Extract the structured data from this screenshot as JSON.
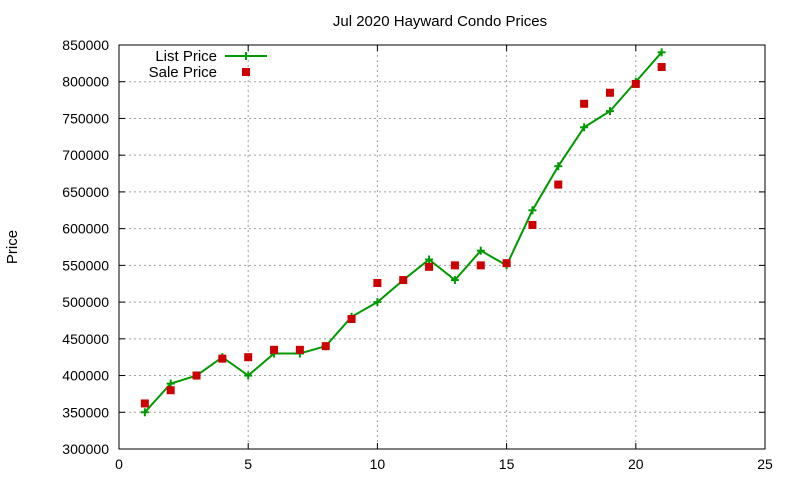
{
  "chart_data": {
    "type": "line",
    "title": "Jul 2020 Hayward Condo Prices",
    "xlabel": "",
    "ylabel": "Price",
    "xlim": [
      0,
      25
    ],
    "ylim": [
      300000,
      850000
    ],
    "xticks": [
      0,
      5,
      10,
      15,
      20,
      25
    ],
    "yticks": [
      300000,
      350000,
      400000,
      450000,
      500000,
      550000,
      600000,
      650000,
      700000,
      750000,
      800000,
      850000
    ],
    "grid": true,
    "legend_position": "top-left",
    "x": [
      1,
      2,
      3,
      4,
      5,
      6,
      7,
      8,
      9,
      10,
      11,
      12,
      13,
      14,
      15,
      16,
      17,
      18,
      19,
      20,
      21
    ],
    "series": [
      {
        "name": "List Price",
        "style": "line+cross",
        "color": "#009900",
        "values": [
          350000,
          389000,
          400000,
          425000,
          400000,
          430000,
          430000,
          440000,
          480000,
          500000,
          530000,
          558000,
          530000,
          570000,
          550000,
          625000,
          685000,
          738000,
          760000,
          800000,
          840000
        ]
      },
      {
        "name": "Sale Price",
        "style": "square",
        "color": "#cc0000",
        "values": [
          362000,
          380000,
          400000,
          423000,
          425000,
          435000,
          435000,
          440000,
          477000,
          526000,
          530000,
          548000,
          550000,
          550000,
          553000,
          605000,
          660000,
          770000,
          785000,
          797000,
          820000
        ]
      }
    ]
  }
}
